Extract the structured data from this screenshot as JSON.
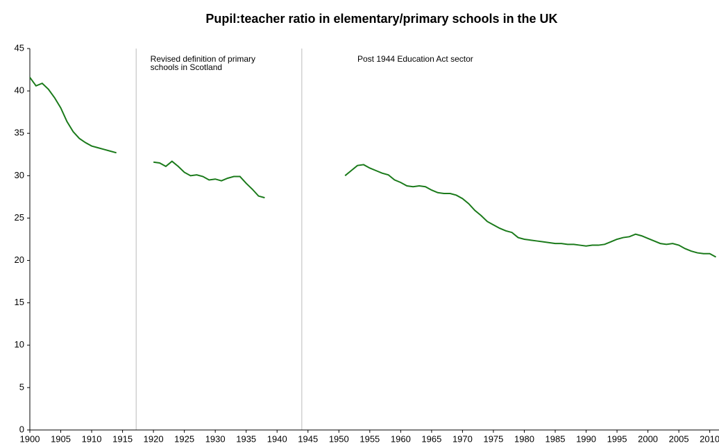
{
  "chart_data": {
    "type": "line",
    "title": "Pupil:teacher ratio in elementary/primary schools in the UK",
    "x": [
      1900,
      1901,
      1902,
      1903,
      1904,
      1905,
      1906,
      1907,
      1908,
      1909,
      1910,
      1911,
      1912,
      1913,
      1914,
      1915,
      1916,
      1917,
      1918,
      1919,
      1920,
      1921,
      1922,
      1923,
      1924,
      1925,
      1926,
      1927,
      1928,
      1929,
      1930,
      1931,
      1932,
      1933,
      1934,
      1935,
      1936,
      1937,
      1938,
      1939,
      1940,
      1941,
      1942,
      1943,
      1944,
      1945,
      1946,
      1947,
      1948,
      1949,
      1950,
      1951,
      1952,
      1953,
      1954,
      1955,
      1956,
      1957,
      1958,
      1959,
      1960,
      1961,
      1962,
      1963,
      1964,
      1965,
      1966,
      1967,
      1968,
      1969,
      1970,
      1971,
      1972,
      1973,
      1974,
      1975,
      1976,
      1977,
      1978,
      1979,
      1980,
      1981,
      1982,
      1983,
      1984,
      1985,
      1986,
      1987,
      1988,
      1989,
      1990,
      1991,
      1992,
      1993,
      1994,
      1995,
      1996,
      1997,
      1998,
      1999,
      2000,
      2001,
      2002,
      2003,
      2004,
      2005,
      2006,
      2007,
      2008,
      2009,
      2010,
      2011
    ],
    "series": [
      {
        "color": "#1a7a1a",
        "values": [
          41.6,
          40.6,
          40.9,
          40.2,
          39.2,
          38.0,
          36.4,
          35.2,
          34.4,
          33.9,
          33.5,
          33.3,
          33.1,
          32.9,
          32.7,
          null,
          null,
          null,
          null,
          null,
          31.6,
          31.5,
          31.1,
          31.7,
          31.1,
          30.4,
          30.0,
          30.1,
          29.9,
          29.5,
          29.6,
          29.4,
          29.7,
          29.9,
          29.9,
          29.1,
          28.4,
          27.6,
          27.4,
          null,
          null,
          null,
          null,
          null,
          null,
          null,
          null,
          null,
          null,
          null,
          null,
          30.0,
          30.6,
          31.2,
          31.3,
          30.9,
          30.6,
          30.3,
          30.1,
          29.5,
          29.2,
          28.8,
          28.7,
          28.8,
          28.7,
          28.3,
          28.0,
          27.9,
          27.9,
          27.7,
          27.3,
          26.7,
          25.9,
          25.3,
          24.6,
          24.2,
          23.8,
          23.5,
          23.3,
          22.7,
          22.5,
          22.4,
          22.3,
          22.2,
          22.1,
          22.0,
          22.0,
          21.9,
          21.9,
          21.8,
          21.7,
          21.8,
          21.8,
          21.9,
          22.2,
          22.5,
          22.7,
          22.8,
          23.1,
          22.9,
          22.6,
          22.3,
          22.0,
          21.9,
          22.0,
          21.8,
          21.4,
          21.1,
          20.9,
          20.8,
          20.8,
          20.4
        ]
      }
    ],
    "xlim": [
      1900,
      2011.5
    ],
    "xticks": [
      1900,
      1905,
      1910,
      1915,
      1920,
      1925,
      1930,
      1935,
      1940,
      1945,
      1950,
      1955,
      1960,
      1965,
      1970,
      1975,
      1980,
      1985,
      1990,
      1995,
      2000,
      2005,
      2010
    ],
    "ylim": [
      0,
      45
    ],
    "yticks": [
      0,
      5,
      10,
      15,
      20,
      25,
      30,
      35,
      40,
      45
    ],
    "vlines": [
      {
        "x": 1917.2,
        "color": "#bbbbbb"
      },
      {
        "x": 1944,
        "color": "#bbbbbb"
      }
    ],
    "annotations": [
      {
        "x": 1919.5,
        "lines": [
          "Revised definition of primary",
          "schools in Scotland"
        ]
      },
      {
        "x": 1953,
        "lines": [
          "Post 1944 Education Act sector"
        ]
      }
    ]
  }
}
